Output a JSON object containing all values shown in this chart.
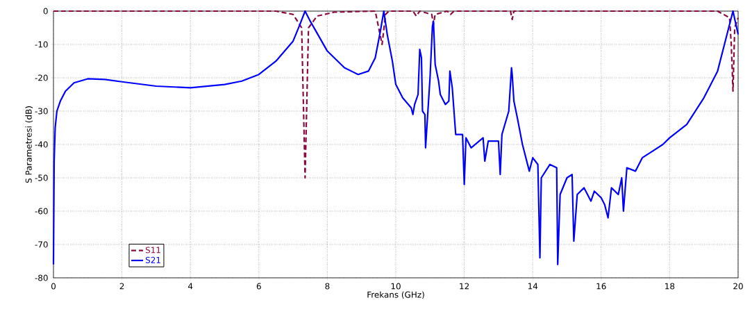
{
  "chart_data": {
    "type": "line",
    "xlabel": "Frekans (GHz)",
    "ylabel": "S Parametresi (dB)",
    "xlim": [
      0,
      20
    ],
    "ylim": [
      -80,
      0
    ],
    "xticks": [
      0,
      2,
      4,
      6,
      8,
      10,
      12,
      14,
      16,
      18,
      20
    ],
    "yticks": [
      -80,
      -70,
      -60,
      -50,
      -40,
      -30,
      -20,
      -10,
      0
    ],
    "grid": true,
    "legend": "bottom left",
    "marker": "none",
    "series": [
      {
        "name": "S11",
        "color": "#8b0a3f",
        "line_style": "dashed",
        "x": [
          0,
          6.5,
          7.0,
          7.25,
          7.35,
          7.45,
          7.7,
          8.2,
          9.4,
          9.6,
          9.7,
          9.8,
          10.5,
          10.6,
          10.7,
          11.05,
          11.1,
          11.15,
          11.5,
          11.6,
          11.7,
          13.35,
          13.4,
          13.45,
          19.4,
          19.75,
          19.8,
          19.85,
          19.9,
          20.0
        ],
        "values": [
          0,
          0,
          -1,
          -5,
          -50,
          -5,
          -1.5,
          -0.3,
          0,
          -10,
          -1,
          0,
          0,
          -1.5,
          0,
          -1,
          -4,
          -1,
          0,
          -1,
          0,
          0,
          -2.5,
          0,
          0,
          -2,
          -10,
          -24,
          -5,
          -2
        ]
      },
      {
        "name": "S21",
        "color": "#0000ff",
        "line_style": "solid",
        "x": [
          0.0,
          0.02,
          0.05,
          0.1,
          0.2,
          0.35,
          0.6,
          1.0,
          1.5,
          2.0,
          3.0,
          4.0,
          5.0,
          5.5,
          6.0,
          6.5,
          7.0,
          7.2,
          7.35,
          7.5,
          8.0,
          8.5,
          8.9,
          9.2,
          9.4,
          9.55,
          9.65,
          9.75,
          9.9,
          10.0,
          10.2,
          10.45,
          10.5,
          10.55,
          10.65,
          10.7,
          10.75,
          10.78,
          10.85,
          10.87,
          10.95,
          11.0,
          11.07,
          11.1,
          11.15,
          11.25,
          11.3,
          11.45,
          11.55,
          11.58,
          11.65,
          11.7,
          11.75,
          11.95,
          12.0,
          12.05,
          12.2,
          12.55,
          12.6,
          12.7,
          13.0,
          13.05,
          13.1,
          13.3,
          13.38,
          13.4,
          13.45,
          13.55,
          13.7,
          13.9,
          14.0,
          14.15,
          14.21,
          14.25,
          14.5,
          14.7,
          14.73,
          14.8,
          15.0,
          15.15,
          15.2,
          15.3,
          15.5,
          15.7,
          15.8,
          16.0,
          16.1,
          16.2,
          16.3,
          16.5,
          16.6,
          16.65,
          16.75,
          17.0,
          17.2,
          17.5,
          17.8,
          18.0,
          18.5,
          19.0,
          19.4,
          19.7,
          19.85,
          20.0
        ],
        "values": [
          -76,
          -45,
          -35,
          -30,
          -27,
          -24,
          -21.5,
          -20.3,
          -20.5,
          -21.2,
          -22.5,
          -23,
          -22,
          -21,
          -19,
          -15,
          -9,
          -4,
          0,
          -3,
          -12,
          -17,
          -19,
          -18,
          -14,
          -6,
          0,
          -7,
          -15,
          -22,
          -26,
          -29,
          -31,
          -28,
          -25,
          -11.5,
          -14,
          -30,
          -31,
          -41,
          -28,
          -20,
          -4.5,
          -3,
          -16,
          -21,
          -25,
          -28,
          -27,
          -18,
          -23,
          -30,
          -37,
          -37,
          -52,
          -38,
          -41,
          -38,
          -45,
          -39,
          -39,
          -49,
          -37,
          -30,
          -17,
          -19,
          -27,
          -32,
          -40,
          -48,
          -44,
          -46,
          -74,
          -50,
          -46,
          -47,
          -76,
          -55,
          -50,
          -49,
          -69,
          -55,
          -53,
          -57,
          -54,
          -56,
          -58,
          -62,
          -53,
          -55,
          -50,
          -60,
          -47,
          -48,
          -44,
          -42,
          -40,
          -38,
          -34,
          -26,
          -18,
          -6,
          0,
          -7
        ]
      }
    ]
  }
}
